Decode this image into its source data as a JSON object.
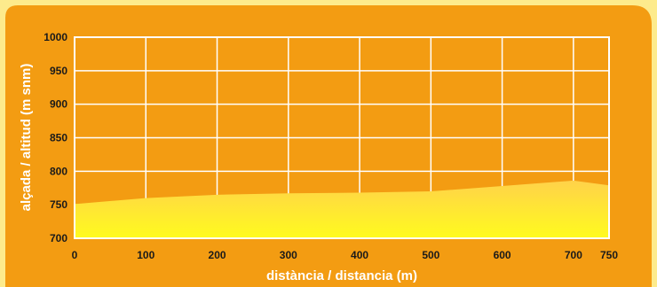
{
  "chart_data": {
    "type": "area",
    "title": "",
    "xlabel": "distància / distancia (m)",
    "ylabel": "alçada / altitud (m snm)",
    "xlim": [
      0,
      750
    ],
    "ylim": [
      700,
      1000
    ],
    "xticks": [
      0,
      100,
      200,
      300,
      400,
      500,
      600,
      700,
      750
    ],
    "yticks": [
      700,
      750,
      800,
      850,
      900,
      950,
      1000
    ],
    "grid": true,
    "x": [
      0,
      100,
      200,
      300,
      400,
      500,
      600,
      700,
      750
    ],
    "y": [
      751,
      760,
      765,
      767,
      768,
      770,
      778,
      786,
      779
    ]
  },
  "colors": {
    "page_background": "#fdeb8c",
    "panel": "#f39c12",
    "grid": "#ffffff",
    "area_top": "#ffd24a",
    "area_bottom": "#fffb1e",
    "text": "#ffffff",
    "tick_text": "#1a1a1a"
  }
}
